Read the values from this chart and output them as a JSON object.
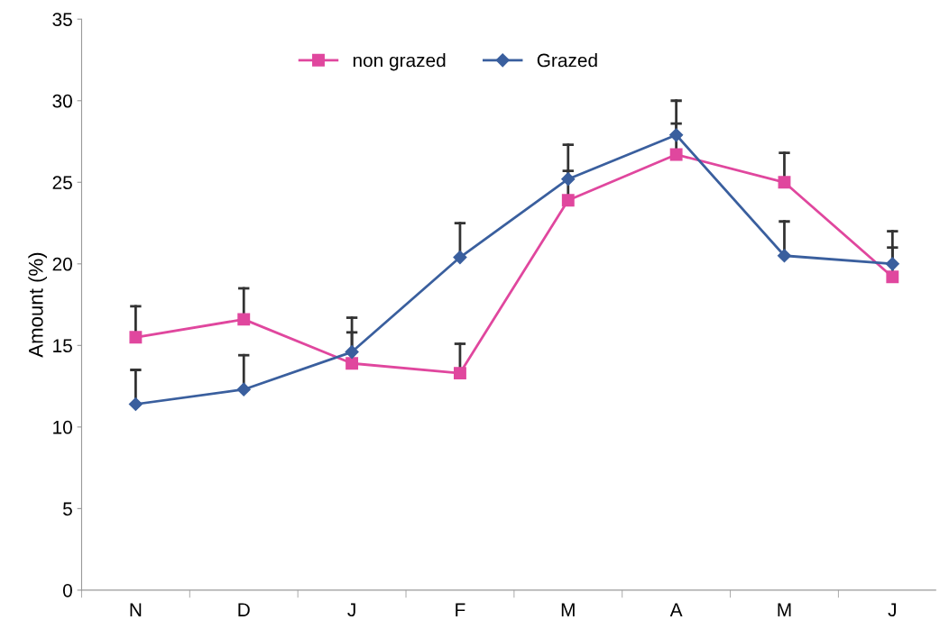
{
  "chart_data": {
    "type": "line",
    "ylabel": "Amount (%)",
    "categories": [
      "N",
      "D",
      "J",
      "F",
      "M",
      "A",
      "M",
      "J"
    ],
    "series": [
      {
        "name": "non grazed",
        "color": "#e0479e",
        "marker": "square",
        "values": [
          15.5,
          16.6,
          13.9,
          13.3,
          23.9,
          26.7,
          25.0,
          19.2
        ],
        "errors": [
          [
            15.5,
            17.4
          ],
          [
            16.6,
            18.5
          ],
          [
            13.9,
            15.8
          ],
          [
            13.3,
            15.1
          ],
          [
            23.9,
            25.7
          ],
          [
            26.7,
            28.6
          ],
          [
            25.0,
            26.8
          ],
          [
            19.2,
            21.0
          ]
        ]
      },
      {
        "name": "Grazed",
        "color": "#3a5f9e",
        "marker": "diamond",
        "values": [
          11.4,
          12.3,
          14.6,
          20.4,
          25.2,
          27.9,
          20.5,
          20.0
        ],
        "errors": [
          [
            11.4,
            13.5
          ],
          [
            12.3,
            14.4
          ],
          [
            14.6,
            16.7
          ],
          [
            20.4,
            22.5
          ],
          [
            25.2,
            27.3
          ],
          [
            27.9,
            30.0
          ],
          [
            20.5,
            22.6
          ],
          [
            20.0,
            22.0
          ]
        ]
      }
    ],
    "ylim": [
      0,
      35
    ],
    "yticks": [
      0,
      5,
      10,
      15,
      20,
      25,
      30,
      35
    ],
    "grid": false,
    "legend": "top",
    "line_style": "solid"
  }
}
